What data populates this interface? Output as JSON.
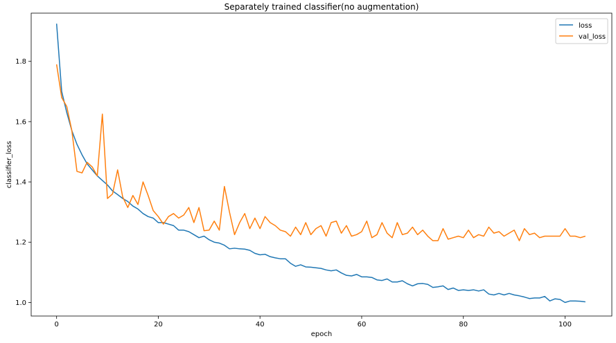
{
  "chart_data": {
    "type": "line",
    "title": "Separately trained classifier(no augmentation)",
    "xlabel": "epoch",
    "ylabel": "classifier_loss",
    "xlim": [
      -5,
      109.2
    ],
    "ylim": [
      0.955,
      1.96
    ],
    "x_ticks": [
      0,
      20,
      40,
      60,
      80,
      100
    ],
    "y_ticks": [
      1.0,
      1.2,
      1.4,
      1.6,
      1.8
    ],
    "grid": false,
    "legend_position": "top-right",
    "series": [
      {
        "name": "loss",
        "color": "#1f77b4",
        "values": [
          1.925,
          1.7,
          1.63,
          1.57,
          1.525,
          1.49,
          1.46,
          1.44,
          1.42,
          1.405,
          1.39,
          1.37,
          1.358,
          1.345,
          1.335,
          1.32,
          1.31,
          1.295,
          1.285,
          1.28,
          1.265,
          1.265,
          1.26,
          1.255,
          1.24,
          1.24,
          1.235,
          1.225,
          1.215,
          1.22,
          1.208,
          1.2,
          1.197,
          1.19,
          1.178,
          1.18,
          1.178,
          1.177,
          1.173,
          1.163,
          1.158,
          1.16,
          1.152,
          1.148,
          1.145,
          1.145,
          1.13,
          1.12,
          1.125,
          1.118,
          1.117,
          1.115,
          1.113,
          1.108,
          1.105,
          1.108,
          1.098,
          1.09,
          1.088,
          1.093,
          1.085,
          1.085,
          1.083,
          1.075,
          1.073,
          1.078,
          1.068,
          1.068,
          1.072,
          1.062,
          1.055,
          1.062,
          1.063,
          1.06,
          1.05,
          1.052,
          1.055,
          1.043,
          1.048,
          1.04,
          1.042,
          1.04,
          1.042,
          1.038,
          1.042,
          1.028,
          1.025,
          1.03,
          1.025,
          1.03,
          1.025,
          1.022,
          1.018,
          1.013,
          1.015,
          1.015,
          1.02,
          1.005,
          1.012,
          1.01,
          1.0,
          1.005,
          1.005,
          1.004,
          1.002
        ]
      },
      {
        "name": "val_loss",
        "color": "#ff7f0e",
        "values": [
          1.79,
          1.68,
          1.65,
          1.57,
          1.435,
          1.43,
          1.465,
          1.45,
          1.42,
          1.625,
          1.345,
          1.36,
          1.44,
          1.35,
          1.315,
          1.355,
          1.325,
          1.4,
          1.355,
          1.305,
          1.285,
          1.26,
          1.285,
          1.295,
          1.28,
          1.29,
          1.315,
          1.265,
          1.315,
          1.238,
          1.24,
          1.27,
          1.24,
          1.385,
          1.3,
          1.225,
          1.265,
          1.295,
          1.245,
          1.28,
          1.245,
          1.285,
          1.265,
          1.255,
          1.24,
          1.235,
          1.22,
          1.25,
          1.225,
          1.265,
          1.225,
          1.245,
          1.255,
          1.22,
          1.265,
          1.27,
          1.23,
          1.255,
          1.22,
          1.225,
          1.235,
          1.27,
          1.215,
          1.225,
          1.265,
          1.23,
          1.215,
          1.265,
          1.225,
          1.23,
          1.25,
          1.225,
          1.24,
          1.22,
          1.205,
          1.205,
          1.245,
          1.21,
          1.215,
          1.22,
          1.215,
          1.24,
          1.215,
          1.225,
          1.22,
          1.25,
          1.23,
          1.235,
          1.22,
          1.23,
          1.24,
          1.205,
          1.245,
          1.225,
          1.23,
          1.215,
          1.22,
          1.22,
          1.22,
          1.22,
          1.245,
          1.22,
          1.22,
          1.215,
          1.22
        ]
      }
    ]
  }
}
